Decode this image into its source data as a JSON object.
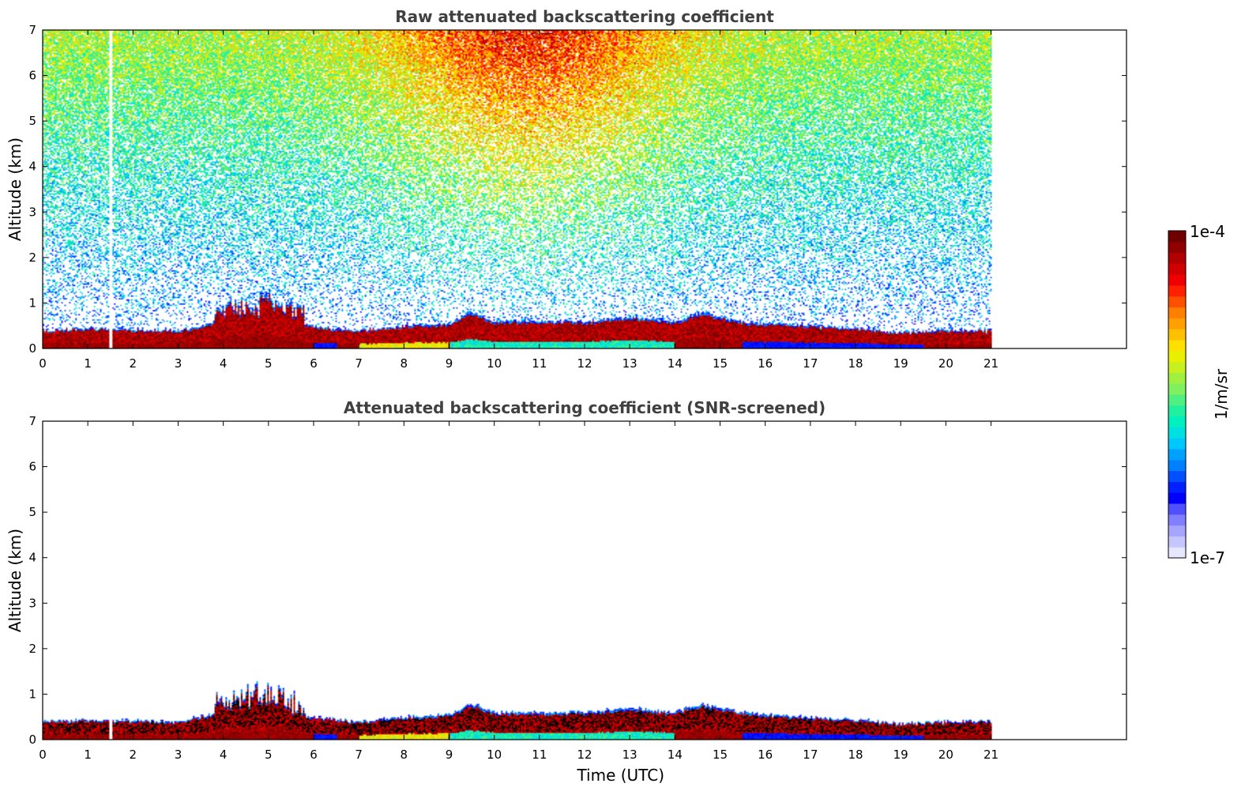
{
  "chart_data": [
    {
      "type": "heatmap",
      "title": "Raw attenuated backscattering coefficient",
      "xlabel": "",
      "ylabel": "Altitude (km)",
      "xlim": [
        0,
        24
      ],
      "ylim": [
        0,
        7
      ],
      "x_ticks": [
        "0",
        "1",
        "2",
        "3",
        "4",
        "5",
        "6",
        "7",
        "8",
        "9",
        "10",
        "11",
        "12",
        "13",
        "14",
        "15",
        "16",
        "17",
        "18",
        "19",
        "20",
        "21"
      ],
      "y_ticks": [
        "0",
        "1",
        "2",
        "3",
        "4",
        "5",
        "6",
        "7"
      ],
      "data_time_range": [
        0,
        21
      ],
      "gap_time": 1.5,
      "boundary_layer_top": {
        "time": [
          0,
          1,
          2,
          3,
          3.9,
          4.5,
          5,
          5.5,
          6,
          7,
          8,
          9,
          9.5,
          10,
          11,
          12,
          13,
          14,
          14.6,
          15,
          15.5,
          16,
          17,
          18,
          19,
          20,
          21
        ],
        "altitude_km": [
          0.4,
          0.45,
          0.42,
          0.4,
          0.6,
          0.7,
          0.8,
          0.6,
          0.5,
          0.4,
          0.5,
          0.55,
          0.8,
          0.6,
          0.6,
          0.6,
          0.7,
          0.6,
          0.8,
          0.7,
          0.6,
          0.55,
          0.5,
          0.45,
          0.35,
          0.4,
          0.4
        ]
      },
      "noise_level": "high",
      "shows_lofted_aerosol": true
    },
    {
      "type": "heatmap",
      "title": "Attenuated backscattering coefficient (SNR-screened)",
      "xlabel": "Time (UTC)",
      "ylabel": "Altitude (km)",
      "xlim": [
        0,
        24
      ],
      "ylim": [
        0,
        7
      ],
      "x_ticks": [
        "0",
        "1",
        "2",
        "3",
        "4",
        "5",
        "6",
        "7",
        "8",
        "9",
        "10",
        "11",
        "12",
        "13",
        "14",
        "15",
        "16",
        "17",
        "18",
        "19",
        "20",
        "21"
      ],
      "y_ticks": [
        "0",
        "1",
        "2",
        "3",
        "4",
        "5",
        "6",
        "7"
      ],
      "data_time_range": [
        0,
        21
      ],
      "gap_time": 1.5,
      "boundary_layer_top": {
        "time": [
          0,
          1,
          2,
          3,
          3.9,
          4.5,
          5,
          5.5,
          6,
          7,
          8,
          9,
          9.5,
          10,
          11,
          12,
          13,
          14,
          14.6,
          15,
          15.5,
          16,
          17,
          18,
          19,
          20,
          21
        ],
        "altitude_km": [
          0.4,
          0.45,
          0.42,
          0.4,
          0.6,
          0.7,
          0.8,
          0.6,
          0.5,
          0.4,
          0.5,
          0.55,
          0.8,
          0.6,
          0.6,
          0.6,
          0.7,
          0.6,
          0.8,
          0.7,
          0.6,
          0.55,
          0.5,
          0.45,
          0.35,
          0.4,
          0.4
        ]
      },
      "noise_level": "none",
      "shows_lofted_aerosol": false
    }
  ],
  "colorbar": {
    "max_label": "1e-4",
    "min_label": "1e-7",
    "unit_label": "1/m/sr",
    "colors": [
      "#e6e6ff",
      "#c6c6ff",
      "#a5a5ff",
      "#7f7fff",
      "#5050ff",
      "#0000ff",
      "#0020ff",
      "#0050ff",
      "#0080ff",
      "#00a0ff",
      "#00c8ff",
      "#00e0e0",
      "#00f0c0",
      "#20f0a0",
      "#50f080",
      "#80f060",
      "#a0f040",
      "#c8f020",
      "#e8f000",
      "#ffe000",
      "#ffc000",
      "#ffa000",
      "#ff8000",
      "#ff5000",
      "#ff2000",
      "#ee0000",
      "#d00000",
      "#b00000",
      "#900000",
      "#700000"
    ]
  }
}
